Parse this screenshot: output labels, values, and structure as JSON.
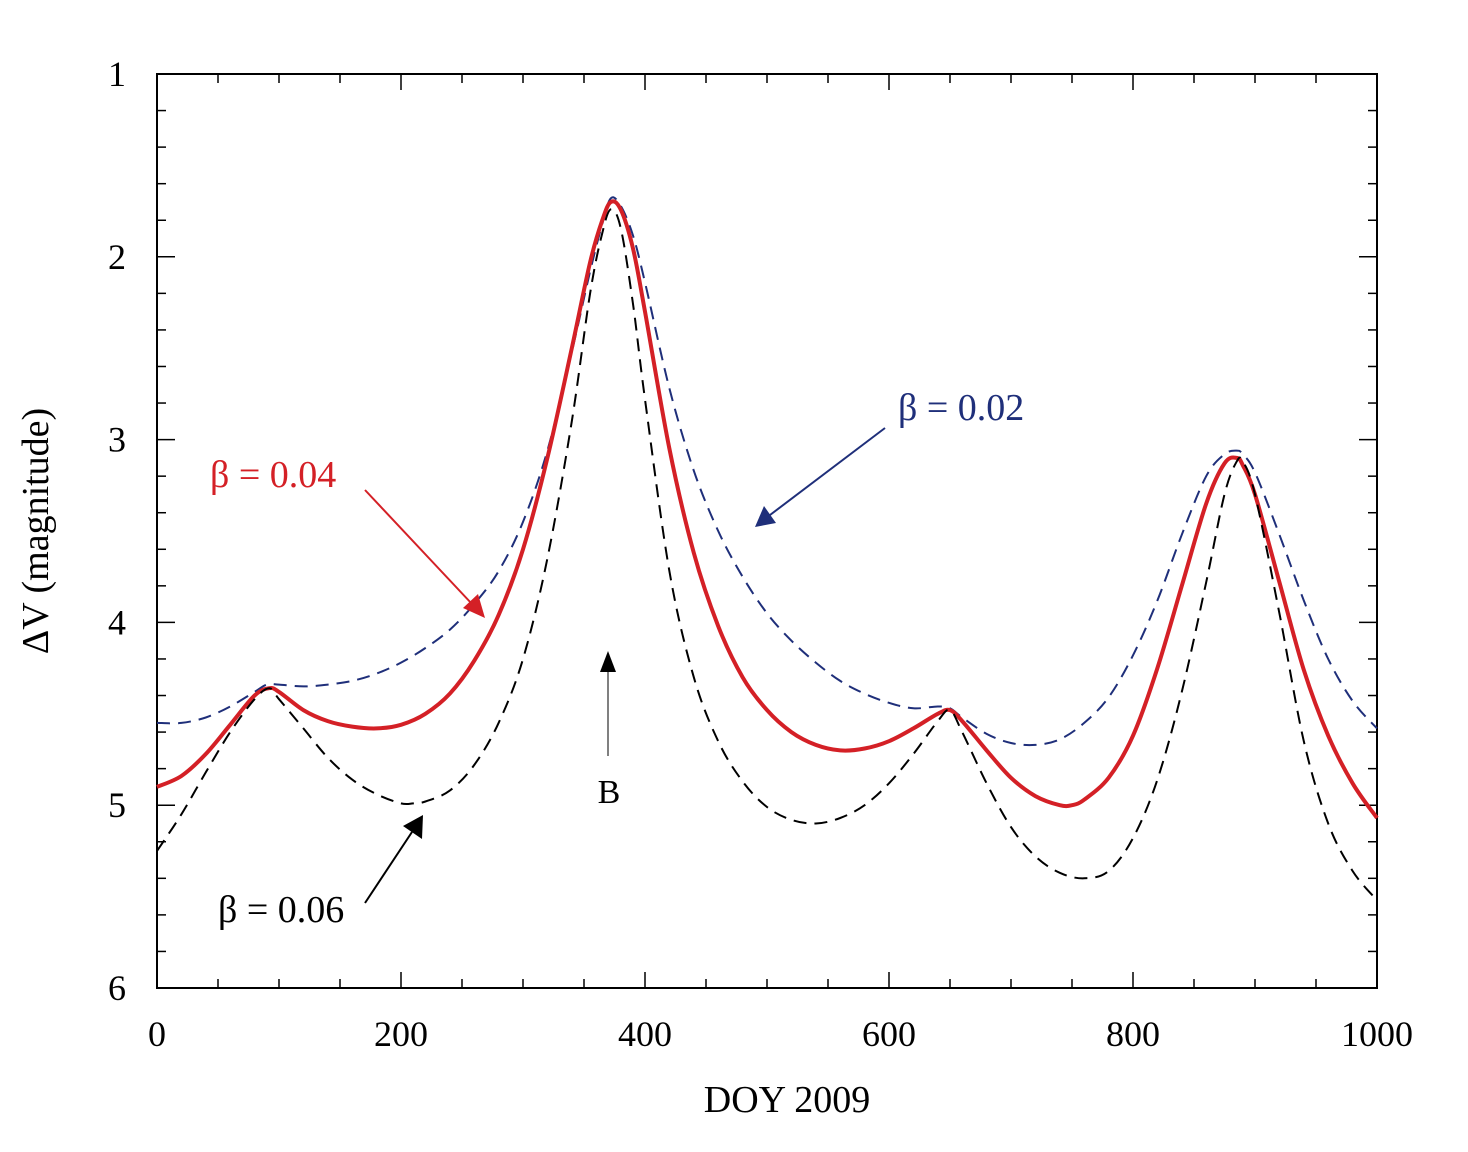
{
  "chart_data": {
    "type": "line",
    "title": "",
    "xlabel": "DOY 2009",
    "ylabel": "ΔV (magnitude)",
    "xlim": [
      0,
      1000
    ],
    "ylim": [
      6,
      1
    ],
    "y_inverted": true,
    "grid": false,
    "x_ticks": [
      "0",
      "200",
      "400",
      "600",
      "800",
      "1000"
    ],
    "y_ticks": [
      "1",
      "2",
      "3",
      "4",
      "5",
      "6"
    ],
    "series": [
      {
        "name": "β = 0.02",
        "color": "#1f2f7a",
        "style": "dashed",
        "x": [
          0,
          20,
          40,
          60,
          80,
          90,
          100,
          120,
          140,
          160,
          180,
          200,
          220,
          240,
          260,
          280,
          300,
          320,
          340,
          355,
          365,
          372,
          380,
          390,
          400,
          420,
          440,
          460,
          480,
          500,
          520,
          540,
          560,
          580,
          600,
          620,
          640,
          650,
          660,
          680,
          700,
          720,
          740,
          760,
          780,
          800,
          820,
          840,
          860,
          875,
          885,
          890,
          900,
          920,
          940,
          960,
          980,
          1000
        ],
        "values": [
          4.55,
          4.55,
          4.52,
          4.46,
          4.38,
          4.34,
          4.34,
          4.35,
          4.34,
          4.32,
          4.28,
          4.22,
          4.14,
          4.04,
          3.9,
          3.72,
          3.45,
          3.06,
          2.52,
          2.08,
          1.82,
          1.68,
          1.72,
          1.88,
          2.14,
          2.72,
          3.17,
          3.5,
          3.75,
          3.95,
          4.1,
          4.22,
          4.32,
          4.39,
          4.44,
          4.47,
          4.46,
          4.47,
          4.52,
          4.61,
          4.66,
          4.67,
          4.64,
          4.55,
          4.41,
          4.18,
          3.88,
          3.52,
          3.2,
          3.08,
          3.06,
          3.08,
          3.18,
          3.52,
          3.88,
          4.2,
          4.43,
          4.58
        ]
      },
      {
        "name": "β = 0.04",
        "color": "#d42026",
        "style": "solid",
        "x": [
          0,
          20,
          40,
          60,
          80,
          92,
          100,
          120,
          140,
          160,
          180,
          200,
          220,
          240,
          260,
          280,
          300,
          320,
          340,
          355,
          365,
          372,
          380,
          390,
          400,
          420,
          440,
          460,
          480,
          500,
          520,
          540,
          560,
          580,
          600,
          620,
          640,
          650,
          660,
          680,
          700,
          720,
          740,
          750,
          760,
          780,
          800,
          820,
          840,
          860,
          875,
          885,
          890,
          900,
          920,
          940,
          960,
          980,
          1000
        ],
        "values": [
          4.9,
          4.84,
          4.72,
          4.56,
          4.4,
          4.36,
          4.38,
          4.48,
          4.54,
          4.57,
          4.58,
          4.56,
          4.5,
          4.39,
          4.21,
          3.96,
          3.6,
          3.1,
          2.5,
          2.03,
          1.8,
          1.7,
          1.74,
          1.95,
          2.3,
          3.05,
          3.62,
          4.02,
          4.3,
          4.48,
          4.6,
          4.67,
          4.7,
          4.69,
          4.65,
          4.58,
          4.5,
          4.48,
          4.54,
          4.7,
          4.85,
          4.95,
          5.0,
          5.0,
          4.97,
          4.85,
          4.62,
          4.25,
          3.8,
          3.35,
          3.13,
          3.1,
          3.14,
          3.3,
          3.78,
          4.26,
          4.62,
          4.88,
          5.07
        ]
      },
      {
        "name": "β = 0.06",
        "color": "#000000",
        "style": "dashed",
        "x": [
          0,
          20,
          40,
          60,
          80,
          92,
          100,
          120,
          140,
          160,
          180,
          200,
          210,
          220,
          240,
          260,
          280,
          300,
          320,
          340,
          355,
          365,
          372,
          380,
          390,
          400,
          420,
          440,
          460,
          480,
          500,
          520,
          540,
          560,
          580,
          600,
          620,
          640,
          650,
          660,
          680,
          700,
          720,
          740,
          760,
          780,
          800,
          820,
          840,
          860,
          875,
          885,
          890,
          900,
          920,
          940,
          960,
          980,
          1000
        ],
        "values": [
          5.25,
          5.05,
          4.82,
          4.6,
          4.42,
          4.36,
          4.42,
          4.58,
          4.74,
          4.86,
          4.94,
          4.99,
          4.99,
          4.98,
          4.92,
          4.78,
          4.55,
          4.2,
          3.65,
          2.9,
          2.2,
          1.87,
          1.74,
          1.84,
          2.25,
          2.78,
          3.72,
          4.3,
          4.65,
          4.87,
          5.01,
          5.08,
          5.1,
          5.07,
          5.0,
          4.88,
          4.72,
          4.54,
          4.48,
          4.6,
          4.88,
          5.12,
          5.28,
          5.37,
          5.4,
          5.36,
          5.18,
          4.86,
          4.38,
          3.78,
          3.3,
          3.12,
          3.12,
          3.3,
          3.95,
          4.65,
          5.1,
          5.36,
          5.52
        ]
      }
    ],
    "annotations": [
      {
        "name": "beta-002",
        "text": "β = 0.02",
        "color": "#1f2f7a"
      },
      {
        "name": "beta-004",
        "text": "β = 0.04",
        "color": "#d42026"
      },
      {
        "name": "beta-006",
        "text": "β = 0.06",
        "color": "#000000"
      },
      {
        "name": "marker-b",
        "text": "B",
        "color": "#000000"
      }
    ]
  }
}
